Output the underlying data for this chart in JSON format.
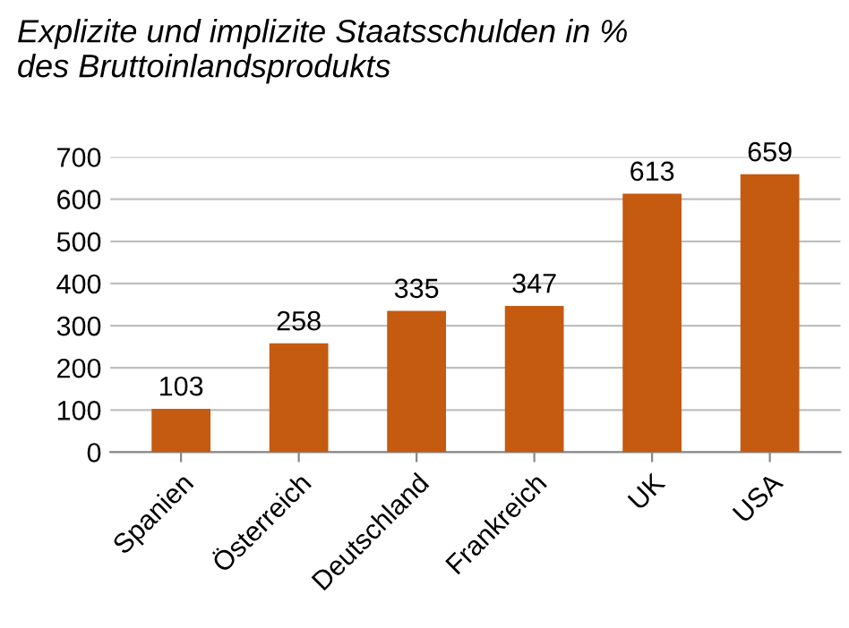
{
  "chart_data": {
    "type": "bar",
    "title": "Explizite und implizite Staatsschulden in %\ndes Bruttoinlandsprodukts",
    "categories": [
      "Spanien",
      "Österreich",
      "Deutschland",
      "Frankreich",
      "UK",
      "USA"
    ],
    "values": [
      103,
      258,
      335,
      347,
      613,
      659
    ],
    "color": "#c55a11",
    "ylim": [
      0,
      700
    ],
    "yticks": [
      0,
      100,
      200,
      300,
      400,
      500,
      600,
      700
    ],
    "grid": "y",
    "data_labels": true,
    "legend": false
  }
}
